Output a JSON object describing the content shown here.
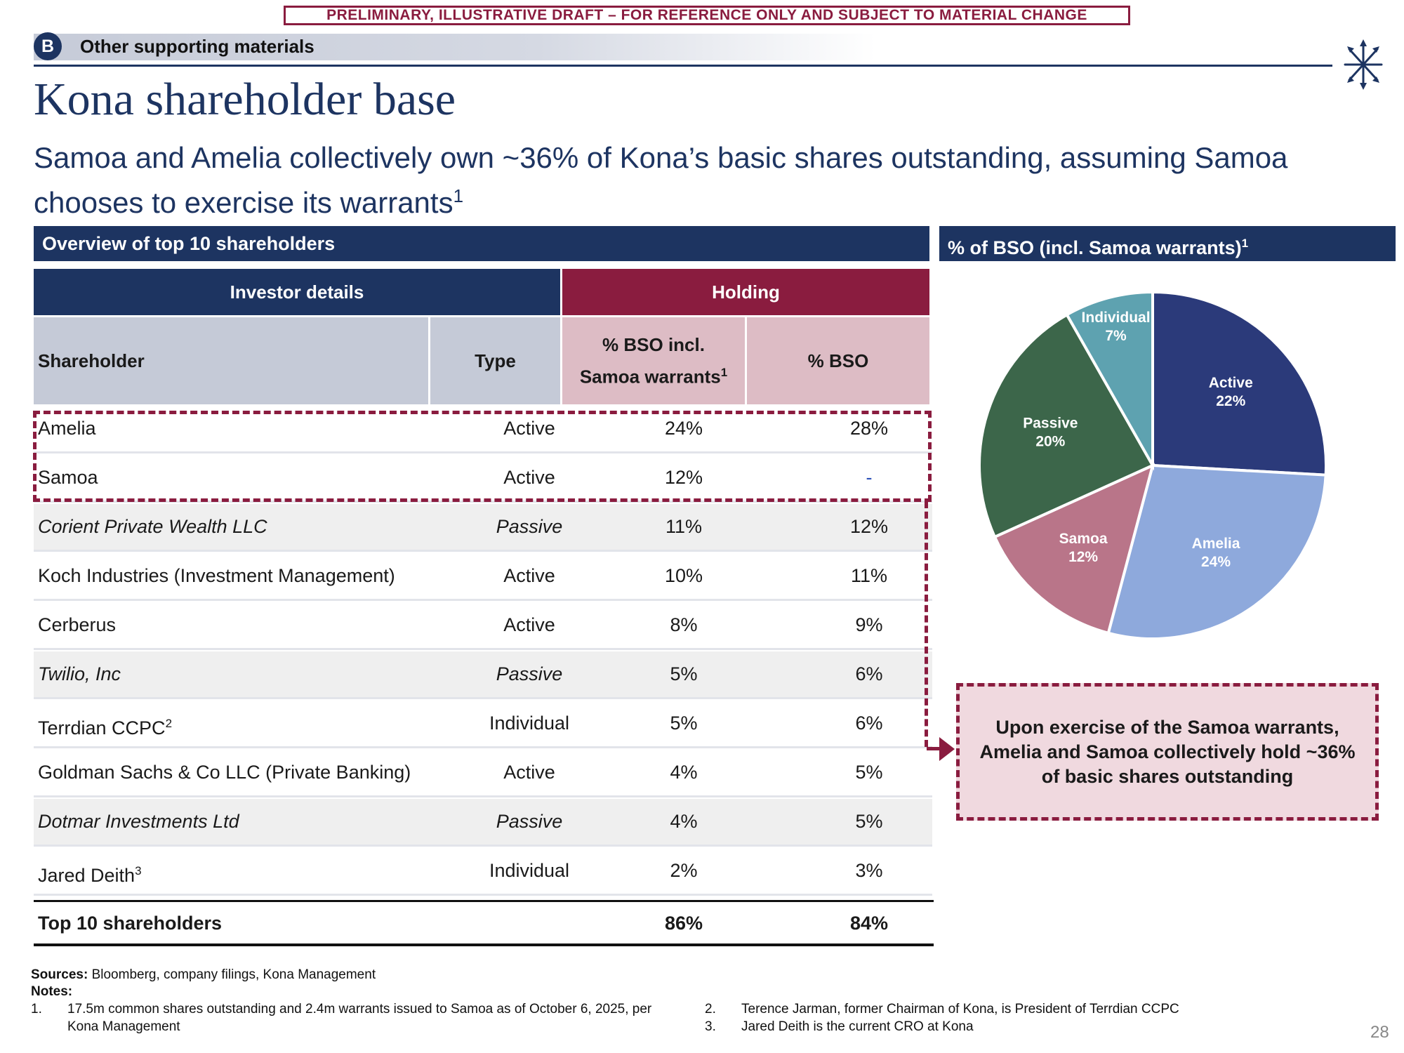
{
  "banner": "PRELIMINARY, ILLUSTRATIVE DRAFT – FOR REFERENCE ONLY AND SUBJECT TO MATERIAL CHANGE",
  "section": {
    "badge": "B",
    "label": "Other supporting materials"
  },
  "title": "Kona shareholder base",
  "subtitle": {
    "text": "Samoa and Amelia collectively own ~36% of Kona’s basic shares outstanding, assuming Samoa chooses to exercise its warrants",
    "footnote_ref": "1"
  },
  "table_panel": {
    "header": "Overview of top 10 shareholders",
    "group_headers": {
      "investor": "Investor details",
      "holding": "Holding"
    },
    "columns": {
      "shareholder": "Shareholder",
      "type": "Type",
      "bso_incl_line1": "% BSO incl.",
      "bso_incl_line2": "Samoa warrants",
      "bso_incl_ref": "1",
      "bso": "% BSO"
    },
    "rows": [
      {
        "name": "Amelia",
        "ref": "",
        "type": "Active",
        "bso_incl": "24%",
        "bso": "28%",
        "italic": false,
        "shade": false
      },
      {
        "name": "Samoa",
        "ref": "",
        "type": "Active",
        "bso_incl": "12%",
        "bso": "-",
        "italic": false,
        "shade": false
      },
      {
        "name": "Corient Private Wealth LLC",
        "ref": "",
        "type": "Passive",
        "bso_incl": "11%",
        "bso": "12%",
        "italic": true,
        "shade": true
      },
      {
        "name": "Koch Industries (Investment Management)",
        "ref": "",
        "type": "Active",
        "bso_incl": "10%",
        "bso": "11%",
        "italic": false,
        "shade": false
      },
      {
        "name": "Cerberus",
        "ref": "",
        "type": "Active",
        "bso_incl": "8%",
        "bso": "9%",
        "italic": false,
        "shade": false
      },
      {
        "name": "Twilio, Inc",
        "ref": "",
        "type": "Passive",
        "bso_incl": "5%",
        "bso": "6%",
        "italic": true,
        "shade": true
      },
      {
        "name": "Terrdian CCPC",
        "ref": "2",
        "type": "Individual",
        "bso_incl": "5%",
        "bso": "6%",
        "italic": false,
        "shade": false
      },
      {
        "name": "Goldman Sachs & Co LLC (Private Banking)",
        "ref": "",
        "type": "Active",
        "bso_incl": "4%",
        "bso": "5%",
        "italic": false,
        "shade": false
      },
      {
        "name": "Dotmar Investments Ltd",
        "ref": "",
        "type": "Passive",
        "bso_incl": "4%",
        "bso": "5%",
        "italic": true,
        "shade": true
      },
      {
        "name": "Jared Deith",
        "ref": "3",
        "type": "Individual",
        "bso_incl": "2%",
        "bso": "3%",
        "italic": false,
        "shade": false
      }
    ],
    "total": {
      "label": "Top 10 shareholders",
      "bso_incl": "86%",
      "bso": "84%"
    }
  },
  "chart_panel": {
    "header": "% of BSO (incl. Samoa warrants)",
    "footnote_ref": "1"
  },
  "chart_data": {
    "type": "pie",
    "title": "% of BSO (incl. Samoa warrants)",
    "slices": [
      {
        "label": "Active",
        "value": 22,
        "value_label": "22%",
        "color": "#2b3a7a",
        "text_color": "#ffffff"
      },
      {
        "label": "Amelia",
        "value": 24,
        "value_label": "24%",
        "color": "#8ea9dc",
        "text_color": "#ffffff"
      },
      {
        "label": "Samoa",
        "value": 12,
        "value_label": "12%",
        "color": "#b97589",
        "text_color": "#ffffff"
      },
      {
        "label": "Passive",
        "value": 20,
        "value_label": "20%",
        "color": "#3c664a",
        "text_color": "#ffffff"
      },
      {
        "label": "Individual",
        "value": 7,
        "value_label": "7%",
        "color": "#5ea2b0",
        "text_color": "#ffffff"
      }
    ]
  },
  "callout": "Upon exercise of the Samoa warrants, Amelia and Samoa collectively hold ~36% of basic shares outstanding",
  "footnotes": {
    "sources_label": "Sources:",
    "sources": "Bloomberg, company filings, Kona Management",
    "notes_label": "Notes:",
    "items": [
      {
        "num": "1.",
        "text_line1": "17.5m common shares outstanding and 2.4m warrants issued to Samoa as of October 6, 2025, per",
        "text_line2": "Kona Management"
      },
      {
        "num": "2.",
        "text_line1": "Terence Jarman, former Chairman of Kona, is President of Terrdian CCPC"
      },
      {
        "num": "3.",
        "text_line1": "Jared Deith is the current CRO at Kona"
      }
    ]
  },
  "page_number": "28",
  "colors": {
    "navy": "#1d3461",
    "maroon": "#8a1c3f",
    "header_grey": "#c5cad7",
    "header_pink": "#ddbcc5"
  }
}
